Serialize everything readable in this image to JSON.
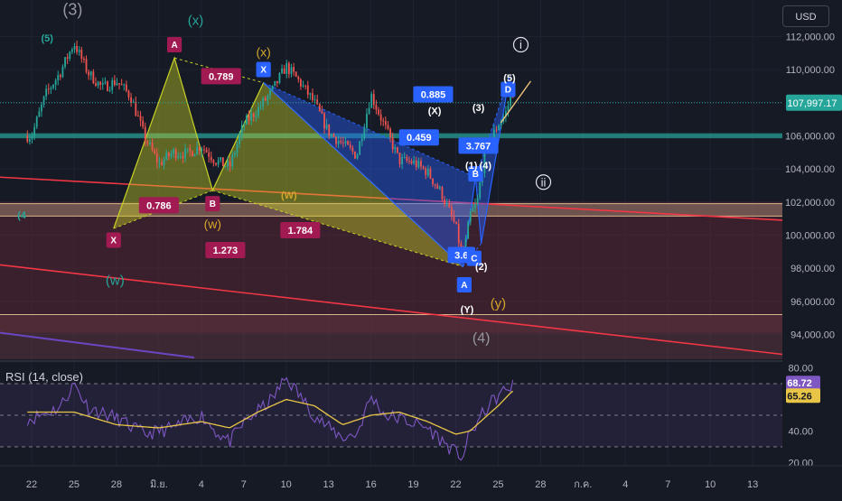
{
  "currency": "USD",
  "chart_data": {
    "type": "candlestick",
    "price_axis": {
      "ticks": [
        "112,000.00",
        "110,000.00",
        "108,000.00",
        "106,000.00",
        "104,000.00",
        "102,000.00",
        "100,000.00",
        "98,000.00",
        "96,000.00",
        "94,000.00"
      ],
      "tick_values": [
        112000,
        110000,
        108000,
        106000,
        104000,
        102000,
        100000,
        98000,
        96000,
        94000
      ],
      "range": [
        92500,
        114200
      ],
      "last_price": "107,997.17",
      "last_price_value": 107997.17,
      "last_price_color": "#26a69a"
    },
    "time_axis": {
      "labels": [
        "22",
        "25",
        "28",
        "มิ.ย.",
        "4",
        "7",
        "10",
        "13",
        "16",
        "19",
        "22",
        "25",
        "28",
        "ก.ค.",
        "4",
        "7",
        "10",
        "13"
      ],
      "label_days": [
        0,
        3,
        6,
        9,
        12,
        15,
        18,
        21,
        24,
        27,
        30,
        33,
        36,
        39,
        42,
        45,
        48,
        51
      ]
    },
    "ohlc_anchor_closes": [
      [
        0,
        106000
      ],
      [
        1,
        108500
      ],
      [
        2,
        109800
      ],
      [
        3,
        111600
      ],
      [
        4,
        109800
      ],
      [
        5,
        108900
      ],
      [
        6,
        109300
      ],
      [
        7,
        108400
      ],
      [
        8,
        105900
      ],
      [
        9,
        104300
      ],
      [
        10,
        105000
      ],
      [
        11,
        104900
      ],
      [
        12,
        105400
      ],
      [
        13,
        104500
      ],
      [
        14,
        104100
      ],
      [
        15,
        106700
      ],
      [
        16,
        107600
      ],
      [
        17,
        108700
      ],
      [
        18,
        110200
      ],
      [
        19,
        109200
      ],
      [
        20,
        108000
      ],
      [
        21,
        106200
      ],
      [
        22,
        105500
      ],
      [
        23,
        104800
      ],
      [
        24,
        108500
      ],
      [
        25,
        106500
      ],
      [
        26,
        104500
      ],
      [
        27,
        104400
      ],
      [
        28,
        103800
      ],
      [
        29,
        102500
      ],
      [
        30,
        100500
      ],
      [
        30.5,
        98400
      ],
      [
        31,
        101200
      ],
      [
        31.5,
        101900
      ],
      [
        32,
        104800
      ],
      [
        32.5,
        105800
      ],
      [
        33,
        106700
      ],
      [
        33.5,
        107300
      ],
      [
        34,
        108600
      ]
    ],
    "rsi": {
      "label": "RSI (14, close)",
      "ticks": [
        "80.00",
        "40.00",
        "20.00"
      ],
      "tick_values": [
        80,
        40,
        20
      ],
      "levels": [
        70,
        50,
        30
      ],
      "range": [
        18,
        82
      ],
      "value": "68.72",
      "value_num": 68.72,
      "ma_value": "65.26",
      "ma_value_num": 65.26,
      "anchors": [
        [
          0,
          48
        ],
        [
          2,
          55
        ],
        [
          3,
          70
        ],
        [
          4,
          55
        ],
        [
          6,
          48
        ],
        [
          8,
          38
        ],
        [
          10,
          42
        ],
        [
          12,
          50
        ],
        [
          13,
          40
        ],
        [
          14,
          33
        ],
        [
          15,
          45
        ],
        [
          17,
          60
        ],
        [
          18,
          74
        ],
        [
          19,
          62
        ],
        [
          20,
          50
        ],
        [
          21,
          42
        ],
        [
          22,
          36
        ],
        [
          23,
          38
        ],
        [
          24,
          62
        ],
        [
          25,
          50
        ],
        [
          26,
          48
        ],
        [
          27,
          45
        ],
        [
          28,
          42
        ],
        [
          29,
          34
        ],
        [
          30,
          26
        ],
        [
          30.5,
          24
        ],
        [
          31,
          38
        ],
        [
          32,
          52
        ],
        [
          32.5,
          58
        ],
        [
          33,
          62
        ],
        [
          33.5,
          66
        ],
        [
          34,
          68.72
        ]
      ],
      "ma_anchors": [
        [
          0,
          52
        ],
        [
          3,
          52
        ],
        [
          6,
          44
        ],
        [
          9,
          42
        ],
        [
          12,
          46
        ],
        [
          14,
          42
        ],
        [
          16,
          52
        ],
        [
          18,
          60
        ],
        [
          20,
          56
        ],
        [
          22,
          44
        ],
        [
          24,
          50
        ],
        [
          26,
          52
        ],
        [
          28,
          46
        ],
        [
          30,
          38
        ],
        [
          31,
          40
        ],
        [
          32,
          48
        ],
        [
          33,
          56
        ],
        [
          34,
          65.26
        ]
      ]
    },
    "harmonic_patterns": [
      {
        "points": [
          [
            "X",
            5.8,
            100400
          ],
          [
            "A",
            10.1,
            110700
          ],
          [
            "B",
            12.8,
            102700
          ],
          [
            "C",
            16.4,
            109200
          ],
          [
            "D",
            30.5,
            98100
          ]
        ],
        "color": "#c7d126"
      },
      {
        "points": [
          [
            "X",
            16.4,
            109200
          ],
          [
            "A",
            30.5,
            98100
          ],
          [
            "B",
            31.4,
            103500
          ],
          [
            "C",
            31.8,
            99500
          ],
          [
            "D",
            33.8,
            109600
          ]
        ],
        "color": "#2962ff"
      }
    ],
    "ratios": [
      {
        "text": "0.786",
        "day": 9.0,
        "price": 101800,
        "bg": "#a11a52"
      },
      {
        "text": "0.789",
        "day": 13.4,
        "price": 109600,
        "bg": "#a11a52"
      },
      {
        "text": "1.273",
        "day": 13.7,
        "price": 99100,
        "bg": "#a11a52"
      },
      {
        "text": "1.784",
        "day": 19.0,
        "price": 100300,
        "bg": "#a11a52"
      },
      {
        "text": "0.885",
        "day": 28.4,
        "price": 108500,
        "bg": "#2962ff"
      },
      {
        "text": "0.459",
        "day": 27.4,
        "price": 105900,
        "bg": "#2962ff"
      },
      {
        "text": "3.767",
        "day": 31.6,
        "price": 105400,
        "bg": "#2962ff"
      },
      {
        "text": "3.6",
        "day": 30.4,
        "price": 98800,
        "bg": "#2962ff"
      }
    ],
    "point_labels": [
      {
        "text": "X",
        "day": 5.8,
        "price": 99700,
        "bg": "#a11a52"
      },
      {
        "text": "A",
        "day": 10.1,
        "price": 111500,
        "bg": "#a11a52"
      },
      {
        "text": "B",
        "day": 12.8,
        "price": 101900,
        "bg": "#a11a52"
      },
      {
        "text": "X",
        "day": 16.4,
        "price": 110000,
        "bg": "#2962ff"
      },
      {
        "text": "A",
        "day": 30.6,
        "price": 97000,
        "bg": "#2962ff"
      },
      {
        "text": "B",
        "day": 31.4,
        "price": 103700,
        "bg": "#2962ff"
      },
      {
        "text": "C",
        "day": 31.3,
        "price": 98600,
        "bg": "#2962ff"
      },
      {
        "text": "D",
        "day": 33.7,
        "price": 108800,
        "bg": "#2962ff"
      }
    ],
    "wave_labels": [
      {
        "text": "(3)",
        "day": 2.9,
        "price": 113300,
        "color": "#9598a1",
        "size": 18
      },
      {
        "text": "(5)",
        "day": 1.1,
        "price": 111700,
        "color": "#26a69a",
        "size": 11
      },
      {
        "text": "(x)",
        "day": 11.6,
        "price": 112700,
        "color": "#26a69a",
        "size": 15
      },
      {
        "text": "(w)",
        "day": 5.9,
        "price": 97000,
        "color": "#26a69a",
        "size": 15
      },
      {
        "text": "(x)",
        "day": 16.4,
        "price": 110800,
        "color": "#d4a62a",
        "size": 14
      },
      {
        "text": "(w)",
        "day": 12.8,
        "price": 100400,
        "color": "#d4a62a",
        "size": 14
      },
      {
        "text": "(W)",
        "day": 18.2,
        "price": 102200,
        "color": "#d4a62a",
        "size": 11
      },
      {
        "text": "(X)",
        "day": 28.5,
        "price": 107300,
        "color": "#ffffff",
        "size": 11
      },
      {
        "text": "(3)",
        "day": 31.6,
        "price": 107500,
        "color": "#ffffff",
        "size": 11
      },
      {
        "text": "(1)",
        "day": 31.1,
        "price": 104000,
        "color": "#ffffff",
        "size": 11
      },
      {
        "text": "(4)",
        "day": 32.1,
        "price": 104000,
        "color": "#ffffff",
        "size": 11
      },
      {
        "text": "(2)",
        "day": 31.8,
        "price": 97900,
        "color": "#ffffff",
        "size": 11
      },
      {
        "text": "(5)",
        "day": 33.8,
        "price": 109300,
        "color": "#ffffff",
        "size": 11
      },
      {
        "text": "(Y)",
        "day": 30.8,
        "price": 95300,
        "color": "#ffffff",
        "size": 11
      },
      {
        "text": "(y)",
        "day": 33.0,
        "price": 95600,
        "color": "#d4a62a",
        "size": 15
      },
      {
        "text": "(4)",
        "day": 31.8,
        "price": 93500,
        "color": "#9598a1",
        "size": 16
      },
      {
        "text": "(4",
        "day": -0.7,
        "price": 101000,
        "color": "#26a69a",
        "size": 11
      }
    ],
    "circled_labels": [
      {
        "text": "i",
        "day": 34.6,
        "price": 111500
      },
      {
        "text": "ii",
        "day": 36.2,
        "price": 103200
      }
    ]
  }
}
